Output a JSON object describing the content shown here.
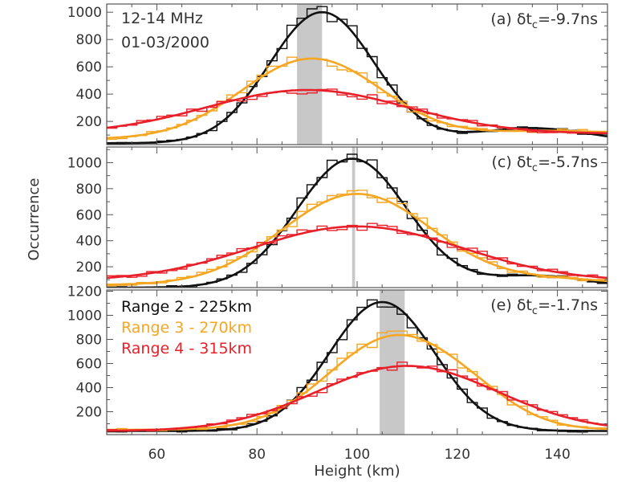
{
  "colors": {
    "range2": "#111111",
    "range3": "#F5A623",
    "range4": "#E8202A",
    "shade": "#C8C8C8",
    "axis": "#555555"
  },
  "chart_data": {
    "type": "line",
    "xlabel": "Height (km)",
    "ylabel": "Occurrence",
    "xlim": [
      50,
      150
    ],
    "xticks": [
      60,
      80,
      100,
      120,
      140
    ],
    "grid": false,
    "legend_placement": "top-left of panel (e)",
    "series_names": [
      "Range 2 - 225km",
      "Range 3 - 270km",
      "Range 4 - 315km"
    ],
    "panels": [
      {
        "id": "a",
        "label": "(a) δt",
        "label_sub": "c",
        "label_value": "=-9.7ns",
        "annotation_lines": [
          "12-14 MHz",
          "01-03/2000"
        ],
        "ylim": [
          30,
          1060
        ],
        "yticks": [
          200,
          400,
          600,
          800,
          1000
        ],
        "shaded_band": [
          88,
          93
        ],
        "fits": [
          {
            "series": "Range 2 - 225km",
            "peak": 960,
            "center": 93,
            "sigma": 10.5,
            "base": 40,
            "tail": 110,
            "tail_center": 135,
            "tail_width": 12
          },
          {
            "series": "Range 3 - 270km",
            "peak": 590,
            "center": 91,
            "sigma": 14,
            "base": 70,
            "tail": 60,
            "tail_center": 140,
            "tail_width": 15
          },
          {
            "series": "Range 4 - 315km",
            "peak": 320,
            "center": 90,
            "sigma": 20,
            "base": 110,
            "tail": 0,
            "tail_center": 140,
            "tail_width": 10
          }
        ]
      },
      {
        "id": "c",
        "label": "(c) δt",
        "label_sub": "c",
        "label_value": "=-5.7ns",
        "annotation_lines": [],
        "ylim": [
          40,
          1120
        ],
        "yticks": [
          200,
          400,
          600,
          800,
          1000
        ],
        "shaded_band": [
          99,
          99.6
        ],
        "fits": [
          {
            "series": "Range 2 - 225km",
            "peak": 990,
            "center": 99,
            "sigma": 11,
            "base": 40,
            "tail": 90,
            "tail_center": 136,
            "tail_width": 10
          },
          {
            "series": "Range 3 - 270km",
            "peak": 700,
            "center": 100,
            "sigma": 15,
            "base": 60,
            "tail": 40,
            "tail_center": 140,
            "tail_width": 12
          },
          {
            "series": "Range 4 - 315km",
            "peak": 420,
            "center": 100,
            "sigma": 21,
            "base": 90,
            "tail": 0,
            "tail_center": 140,
            "tail_width": 10
          }
        ]
      },
      {
        "id": "e",
        "label": "(e) δt",
        "label_sub": "c",
        "label_value": "=-1.7ns",
        "annotation_lines": [],
        "ylim": [
          10,
          1210
        ],
        "yticks": [
          200,
          400,
          600,
          800,
          1000,
          1200
        ],
        "shaded_band": [
          104.5,
          109.5
        ],
        "legend": [
          "Range 2 - 225km",
          "Range 3 - 270km",
          "Range 4 - 315km"
        ],
        "fits": [
          {
            "series": "Range 2 - 225km",
            "peak": 1070,
            "center": 105,
            "sigma": 10.5,
            "base": 40,
            "tail": 0,
            "tail_center": 140,
            "tail_width": 10
          },
          {
            "series": "Range 3 - 270km",
            "peak": 780,
            "center": 108,
            "sigma": 13.5,
            "base": 50,
            "tail": 60,
            "tail_center": 125,
            "tail_width": 8
          },
          {
            "series": "Range 4 - 315km",
            "peak": 540,
            "center": 110,
            "sigma": 18,
            "base": 40,
            "tail": 0,
            "tail_center": 140,
            "tail_width": 10
          }
        ]
      }
    ]
  }
}
